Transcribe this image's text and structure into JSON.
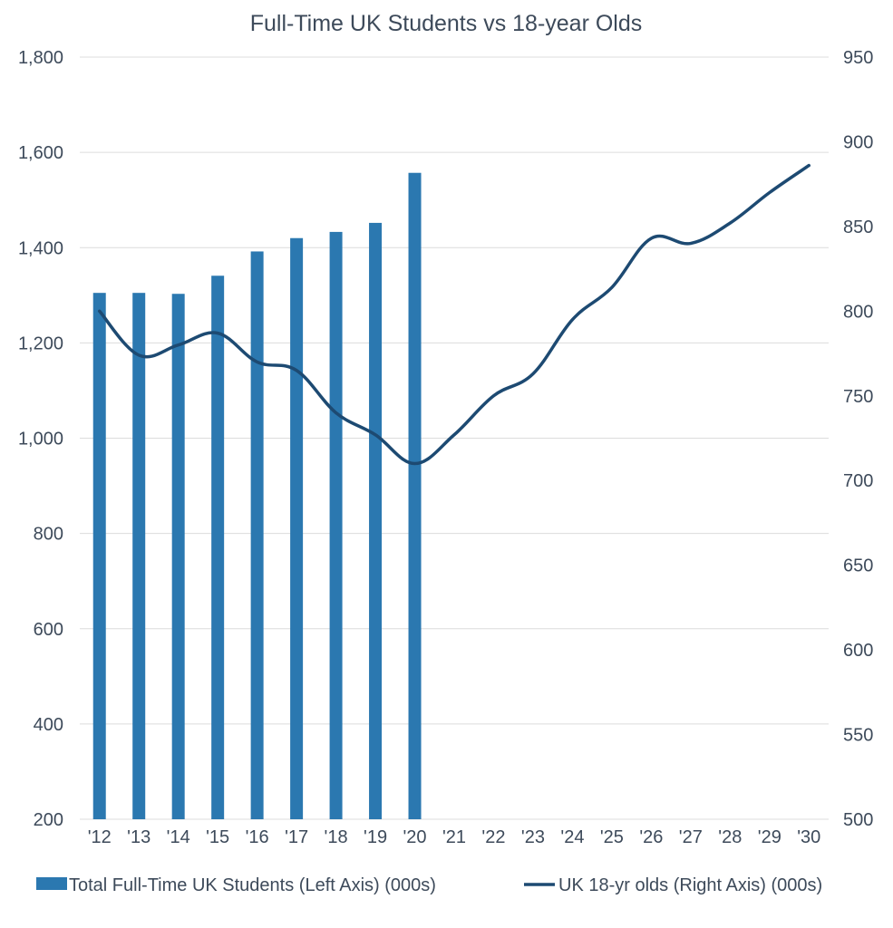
{
  "chart_data": {
    "type": "bar",
    "title": "Full-Time UK Students vs 18-year Olds",
    "categories": [
      "'12",
      "'13",
      "'14",
      "'15",
      "'16",
      "'17",
      "'18",
      "'19",
      "'20",
      "'21",
      "'22",
      "'23",
      "'24",
      "'25",
      "'26",
      "'27",
      "'28",
      "'29",
      "'30"
    ],
    "left_axis": {
      "ylim": [
        200,
        1800
      ],
      "ticks": [
        200,
        400,
        600,
        800,
        1000,
        1200,
        1400,
        1600,
        1800
      ],
      "tick_labels": [
        "200",
        "400",
        "600",
        "800",
        "1,000",
        "1,200",
        "1,400",
        "1,600",
        "1,800"
      ]
    },
    "right_axis": {
      "ylim": [
        500,
        950
      ],
      "ticks": [
        500,
        550,
        600,
        650,
        700,
        750,
        800,
        850,
        900,
        950
      ],
      "tick_labels": [
        "500",
        "550",
        "600",
        "650",
        "700",
        "750",
        "800",
        "850",
        "900",
        "950"
      ]
    },
    "grid": true,
    "legend_position": "bottom",
    "series": [
      {
        "name": "Total Full-Time UK Students (Left Axis) (000s)",
        "type": "bar",
        "axis": "left",
        "color": "#2b78b0",
        "values": [
          1305,
          1305,
          1303,
          1341,
          1392,
          1420,
          1433,
          1452,
          1557,
          null,
          null,
          null,
          null,
          null,
          null,
          null,
          null,
          null,
          null
        ]
      },
      {
        "name": "UK 18-yr olds (Right Axis) (000s)",
        "type": "line",
        "axis": "right",
        "color": "#1d4a72",
        "values": [
          800,
          774,
          780,
          787,
          770,
          765,
          740,
          727,
          710,
          727,
          750,
          763,
          795,
          814,
          843,
          840,
          852,
          870,
          886
        ]
      }
    ]
  }
}
